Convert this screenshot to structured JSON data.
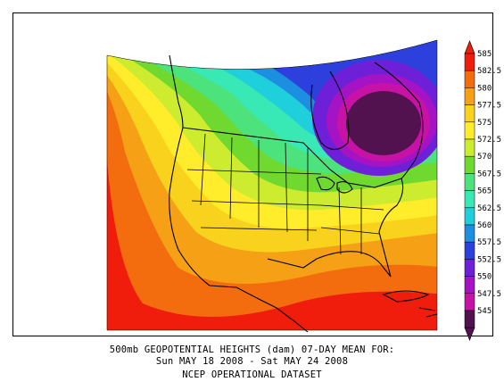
{
  "title_line1": "500mb GEOPOTENTIAL HEIGHTS (dam)   07-DAY MEAN FOR:",
  "title_line2": "Sun MAY 18 2008 - Sat MAY 24 2008",
  "dataset": "NCEP OPERATIONAL DATASET",
  "colorbar": {
    "levels": [
      "585",
      "582.5",
      "580",
      "577.5",
      "575",
      "572.5",
      "570",
      "567.5",
      "565",
      "562.5",
      "560",
      "557.5",
      "552.5",
      "550",
      "547.5",
      "545"
    ],
    "colors": [
      "#f01d0c",
      "#f36d0f",
      "#f5a015",
      "#f8d21c",
      "#ffec2a",
      "#cdeb2f",
      "#70d92f",
      "#4ce37d",
      "#38e8b5",
      "#1fcfdb",
      "#1d8fe0",
      "#2d3fdc",
      "#6e20d8",
      "#a513c4",
      "#c812a6",
      "#52124f"
    ]
  },
  "map": {
    "field": "500mb geopotential heights",
    "units": "dam",
    "low_center": "eastern Canada / Hudson Bay",
    "high_values": "southwest and subtropics"
  }
}
